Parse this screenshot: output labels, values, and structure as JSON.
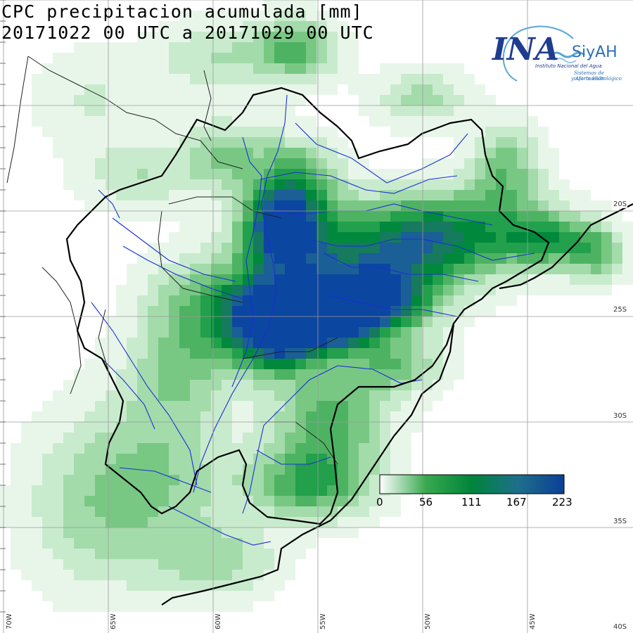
{
  "title": {
    "line1": "CPC precipitacion acumulada [mm]",
    "line2": "20171022 00 UTC a 20171029 00 UTC"
  },
  "logo": {
    "mark": "INA",
    "brand": "SiyAH",
    "subtitle1": "Instituto Nacional del Agua",
    "subtitle2": "Sistemas de información",
    "subtitle3": "y Alerta Hidrológico",
    "colors": {
      "mark": "#1f3c8f",
      "brand": "#2a6fb8",
      "wave": "#5aa7d6"
    }
  },
  "grid": {
    "longitudes": [
      "70W",
      "65W",
      "60W",
      "55W",
      "50W",
      "45W"
    ],
    "latitudes": [
      "20S",
      "25S",
      "30S",
      "35S",
      "40S"
    ]
  },
  "legend": {
    "ticks": [
      "0",
      "56",
      "111",
      "167",
      "223"
    ],
    "min": 0,
    "max": 223,
    "colors": [
      "#ffffff",
      "#39a94f",
      "#00843b",
      "#1f6f8a",
      "#0a3f96"
    ]
  },
  "precip_palette": [
    "#ffffff",
    "#e8f6ea",
    "#c9ebcd",
    "#a4dbab",
    "#78c884",
    "#4db363",
    "#22a04c",
    "#00893c",
    "#157a5e",
    "#1a5f96",
    "#0b46a0"
  ]
}
